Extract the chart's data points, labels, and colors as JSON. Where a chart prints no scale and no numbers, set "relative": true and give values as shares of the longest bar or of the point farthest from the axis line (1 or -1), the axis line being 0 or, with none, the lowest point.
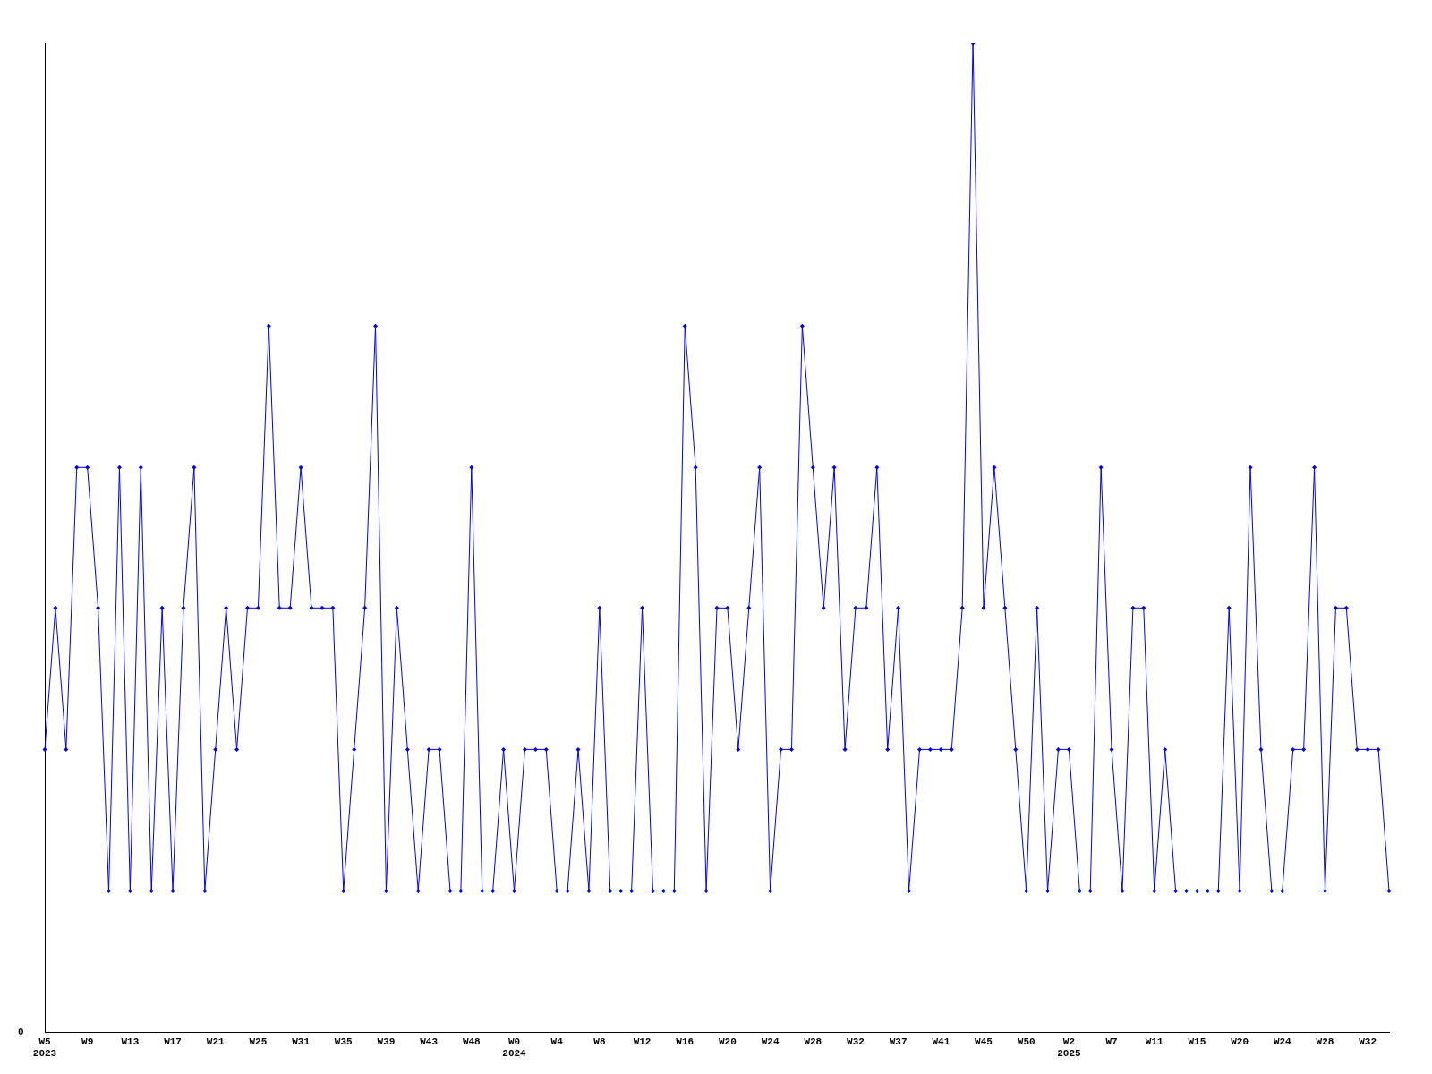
{
  "chart_data": {
    "type": "line",
    "relative": true,
    "marker": "diamond",
    "line_style": "solid",
    "grid": false,
    "legend": false,
    "annotations": [
      "0"
    ],
    "categories": [
      "W5\n2023",
      null,
      null,
      null,
      "W9",
      null,
      null,
      null,
      "W13",
      null,
      null,
      null,
      "W17",
      null,
      null,
      null,
      "W21",
      null,
      null,
      null,
      "W25",
      null,
      null,
      null,
      "W31",
      null,
      null,
      null,
      "W35",
      null,
      null,
      null,
      "W39",
      null,
      null,
      null,
      "W43",
      null,
      null,
      null,
      "W48",
      null,
      null,
      null,
      "W0\n2024",
      null,
      null,
      null,
      "W4",
      null,
      null,
      null,
      "W8",
      null,
      null,
      null,
      "W12",
      null,
      null,
      null,
      "W16",
      null,
      null,
      null,
      "W20",
      null,
      null,
      null,
      "W24",
      null,
      null,
      null,
      "W28",
      null,
      null,
      null,
      "W32",
      null,
      null,
      null,
      "W37",
      null,
      null,
      null,
      "W41",
      null,
      null,
      null,
      "W45",
      null,
      null,
      null,
      "W50",
      null,
      null,
      null,
      "W2\n2025",
      null,
      null,
      null,
      "W7",
      null,
      null,
      null,
      "W11",
      null,
      null,
      null,
      "W15",
      null,
      null,
      null,
      "W20",
      null,
      null,
      null,
      "W24",
      null,
      null,
      null,
      "W28",
      null,
      null,
      null,
      "W32",
      null,
      null
    ],
    "series": [
      {
        "color": "#0000ff",
        "values": [
          0.286,
          0.429,
          0.286,
          0.571,
          0.571,
          0.429,
          0.143,
          0.571,
          0.143,
          0.571,
          0.143,
          0.429,
          0.143,
          0.429,
          0.571,
          0.143,
          0.286,
          0.429,
          0.286,
          0.429,
          0.429,
          0.714,
          0.429,
          0.429,
          0.571,
          0.429,
          0.429,
          0.429,
          0.143,
          0.286,
          0.429,
          0.714,
          0.143,
          0.429,
          0.286,
          0.143,
          0.286,
          0.286,
          0.143,
          0.143,
          0.571,
          0.143,
          0.143,
          0.286,
          0.143,
          0.286,
          0.286,
          0.286,
          0.143,
          0.143,
          0.286,
          0.143,
          0.429,
          0.143,
          0.143,
          0.143,
          0.429,
          0.143,
          0.143,
          0.143,
          0.714,
          0.571,
          0.143,
          0.429,
          0.429,
          0.286,
          0.429,
          0.571,
          0.143,
          0.286,
          0.286,
          0.714,
          0.571,
          0.429,
          0.571,
          0.286,
          0.429,
          0.429,
          0.571,
          0.286,
          0.429,
          0.143,
          0.286,
          0.286,
          0.286,
          0.286,
          0.429,
          1,
          0.429,
          0.571,
          0.429,
          0.286,
          0.143,
          0.429,
          0.143,
          0.286,
          0.286,
          0.143,
          0.143,
          0.571,
          0.286,
          0.143,
          0.429,
          0.429,
          0.143,
          0.286,
          0.143,
          0.143,
          0.143,
          0.143,
          0.143,
          0.429,
          0.143,
          0.571,
          0.286,
          0.143,
          0.143,
          0.286,
          0.286,
          0.571,
          0.143,
          0.429,
          0.429,
          0.286,
          0.286,
          0.286,
          0.143
        ]
      }
    ]
  }
}
